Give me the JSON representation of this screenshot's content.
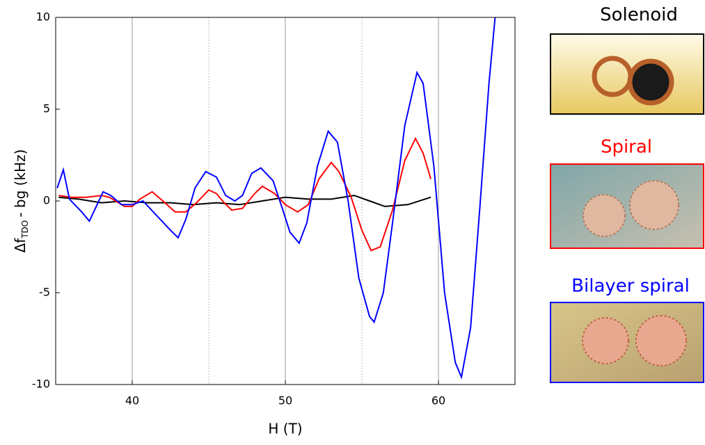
{
  "chart_data": {
    "type": "line",
    "x_label": "H (T)",
    "y_label": [
      "Δf",
      "TDO",
      "- bg  (kHz)"
    ],
    "xlim": [
      35,
      65
    ],
    "xticks": [
      40,
      50,
      60
    ],
    "x_minor_grid": [
      45,
      55
    ],
    "ylim": [
      -10,
      10
    ],
    "yticks": [
      -10,
      -5,
      0,
      5,
      10
    ],
    "grid": true,
    "series": [
      {
        "name": "Solenoid",
        "color": "#000000",
        "x": [
          35.2,
          36.5,
          38,
          39.5,
          41,
          42.5,
          44,
          45.5,
          47,
          48.5,
          50,
          51.5,
          53,
          54.5,
          55.5,
          56.5,
          58,
          59.5
        ],
        "values": [
          0.2,
          0.1,
          -0.1,
          0,
          -0.1,
          -0.1,
          -0.2,
          -0.1,
          -0.2,
          0,
          0.2,
          0.1,
          0.1,
          0.3,
          0,
          -0.3,
          -0.2,
          0.2
        ]
      },
      {
        "name": "Spiral",
        "color": "#ff0000",
        "x": [
          35.2,
          36,
          37,
          38,
          38.5,
          39.5,
          40,
          40.5,
          41.3,
          42,
          42.8,
          43.5,
          44.2,
          45,
          45.5,
          46,
          46.5,
          47.2,
          48,
          48.5,
          49.3,
          50,
          50.8,
          51.5,
          52.2,
          53,
          53.5,
          54.3,
          55,
          55.6,
          56.2,
          57,
          57.8,
          58.5,
          59,
          59.5
        ],
        "values": [
          0.3,
          0.2,
          0.2,
          0.3,
          0.2,
          -0.3,
          -0.3,
          0.1,
          0.5,
          0,
          -0.6,
          -0.6,
          -0.1,
          0.6,
          0.4,
          -0.1,
          -0.5,
          -0.4,
          0.4,
          0.8,
          0.4,
          -0.2,
          -0.6,
          -0.2,
          1.2,
          2.1,
          1.6,
          0.2,
          -1.6,
          -2.7,
          -2.5,
          -0.5,
          2.2,
          3.4,
          2.6,
          1.2
        ]
      },
      {
        "name": "Bilayer spiral",
        "color": "#0000ff",
        "x": [
          35.1,
          35.5,
          35.9,
          36.7,
          37.2,
          38.1,
          38.6,
          39.3,
          40,
          40.7,
          41.6,
          42.5,
          43,
          43.5,
          44.1,
          44.8,
          45.5,
          46.1,
          46.7,
          47.2,
          47.8,
          48.4,
          49.2,
          49.8,
          50.3,
          50.9,
          51.4,
          52.1,
          52.8,
          53.4,
          54.1,
          54.8,
          55.5,
          55.8,
          56.4,
          57,
          57.8,
          58.6,
          59,
          59.7,
          60.4,
          61.1,
          61.5,
          62.1,
          62.7,
          63.3,
          63.7
        ],
        "values": [
          0.7,
          1.7,
          0.1,
          -0.6,
          -1.1,
          0.5,
          0.3,
          -0.2,
          -0.2,
          0,
          -0.8,
          -1.6,
          -2.0,
          -1,
          0.7,
          1.6,
          1.3,
          0.3,
          0,
          0.3,
          1.5,
          1.8,
          1.1,
          -0.4,
          -1.7,
          -2.3,
          -1.2,
          1.9,
          3.8,
          3.2,
          0,
          -4.2,
          -6.3,
          -6.6,
          -5,
          -1.2,
          4.1,
          7.0,
          6.4,
          1.9,
          -5,
          -8.8,
          -9.6,
          -6.9,
          -0.4,
          6.4,
          10
        ]
      }
    ]
  }
}
